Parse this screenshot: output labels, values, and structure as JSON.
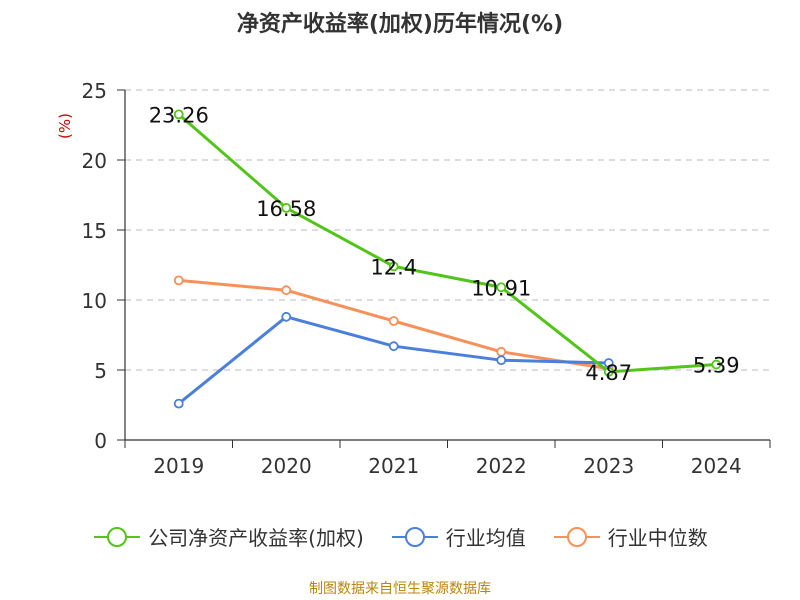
{
  "chart_data": {
    "type": "line",
    "title": "净资产收益率(加权)历年情况(%)",
    "ylabel": "(%)",
    "categories": [
      "2019",
      "2020",
      "2021",
      "2022",
      "2023",
      "2024"
    ],
    "ylim": [
      0,
      25
    ],
    "yticks": [
      0,
      5,
      10,
      15,
      20,
      25
    ],
    "grid": true,
    "legend_position": "bottom",
    "series": [
      {
        "name": "公司净资产收益率(加权)",
        "color": "#52c41a",
        "values": [
          23.26,
          16.58,
          12.4,
          10.91,
          4.87,
          5.39
        ],
        "labels": [
          "23.26",
          "16.58",
          "12.4",
          "10.91",
          "4.87",
          "5.39"
        ]
      },
      {
        "name": "行业均值",
        "color": "#4a7fdb",
        "values": [
          2.6,
          8.8,
          6.7,
          5.7,
          5.5,
          null
        ]
      },
      {
        "name": "行业中位数",
        "color": "#f79059",
        "values": [
          11.4,
          10.7,
          8.5,
          6.3,
          5.1,
          null
        ]
      }
    ]
  },
  "source": "制图数据来自恒生聚源数据库"
}
